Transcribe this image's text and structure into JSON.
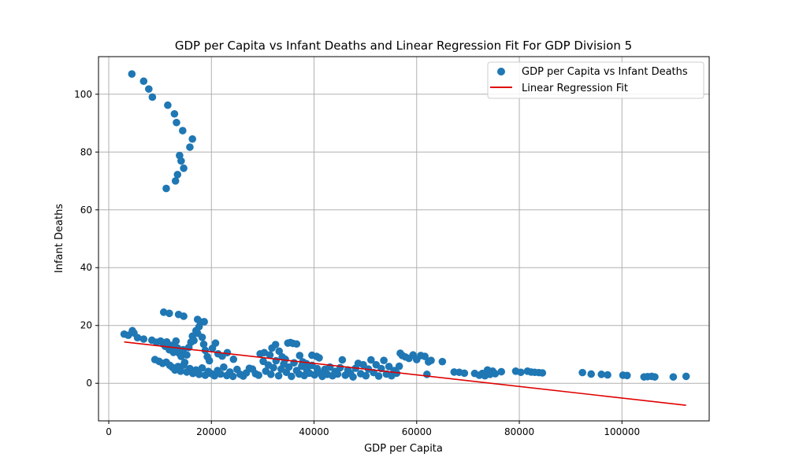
{
  "chart_data": {
    "type": "scatter",
    "title": "GDP per Capita vs Infant Deaths and Linear Regression Fit For GDP Division 5",
    "xlabel": "GDP per Capita",
    "ylabel": "Infant Deaths",
    "xlim": [
      -2000,
      117000
    ],
    "ylim": [
      -13,
      113
    ],
    "xticks": [
      0,
      20000,
      40000,
      60000,
      80000,
      100000
    ],
    "yticks": [
      0,
      20,
      40,
      60,
      80,
      100
    ],
    "grid": true,
    "legend_position": "top-right",
    "colors": {
      "scatter": "#1f77b4",
      "fit": "#e00000",
      "grid": "#b0b0b0"
    },
    "series": [
      {
        "name": "GDP per Capita vs Infant Deaths",
        "kind": "scatter",
        "points": [
          [
            4500,
            107
          ],
          [
            6800,
            104.5
          ],
          [
            7800,
            101.8
          ],
          [
            8500,
            99
          ],
          [
            11500,
            96.2
          ],
          [
            12800,
            93.2
          ],
          [
            13200,
            90.2
          ],
          [
            14400,
            87.4
          ],
          [
            16300,
            84.5
          ],
          [
            15800,
            81.7
          ],
          [
            13800,
            78.8
          ],
          [
            14100,
            76.9
          ],
          [
            14600,
            74.4
          ],
          [
            13400,
            72.2
          ],
          [
            13000,
            70
          ],
          [
            11200,
            67.4
          ],
          [
            3000,
            17
          ],
          [
            3800,
            16.6
          ],
          [
            4600,
            18.2
          ],
          [
            4900,
            17.4
          ],
          [
            5600,
            15.8
          ],
          [
            6800,
            15.3
          ],
          [
            8400,
            14.9
          ],
          [
            9300,
            14.2
          ],
          [
            10100,
            14.6
          ],
          [
            10600,
            13.6
          ],
          [
            11000,
            12.8
          ],
          [
            11300,
            14.3
          ],
          [
            11800,
            11.6
          ],
          [
            12300,
            13.1
          ],
          [
            12600,
            10.7
          ],
          [
            13100,
            14.6
          ],
          [
            13400,
            12.2
          ],
          [
            13700,
            10.4
          ],
          [
            14100,
            9.3
          ],
          [
            14500,
            11.6
          ],
          [
            14800,
            7.2
          ],
          [
            15200,
            9.8
          ],
          [
            15600,
            12.4
          ],
          [
            16000,
            14.2
          ],
          [
            16300,
            16.3
          ],
          [
            16600,
            14.8
          ],
          [
            17000,
            18.2
          ],
          [
            17300,
            17.3
          ],
          [
            17600,
            19.6
          ],
          [
            17900,
            21.2
          ],
          [
            18200,
            15.9
          ],
          [
            18500,
            13.5
          ],
          [
            18800,
            11.4
          ],
          [
            19200,
            9.2
          ],
          [
            19600,
            7.8
          ],
          [
            20200,
            12.1
          ],
          [
            20800,
            13.9
          ],
          [
            21300,
            10.2
          ],
          [
            22100,
            9.4
          ],
          [
            23100,
            10.6
          ],
          [
            24300,
            8.3
          ],
          [
            10700,
            24.6
          ],
          [
            11800,
            24.2
          ],
          [
            13600,
            23.8
          ],
          [
            14600,
            23.2
          ],
          [
            17300,
            22.1
          ],
          [
            18600,
            21.3
          ],
          [
            9000,
            8.2
          ],
          [
            9800,
            7.6
          ],
          [
            10500,
            6.9
          ],
          [
            11200,
            7.3
          ],
          [
            11900,
            6.2
          ],
          [
            12400,
            5.5
          ],
          [
            12900,
            4.6
          ],
          [
            13500,
            5.8
          ],
          [
            14000,
            4.2
          ],
          [
            14600,
            6.3
          ],
          [
            15200,
            3.9
          ],
          [
            15800,
            5.1
          ],
          [
            16400,
            3.4
          ],
          [
            17000,
            4.6
          ],
          [
            17600,
            3.1
          ],
          [
            18200,
            5.3
          ],
          [
            18800,
            2.8
          ],
          [
            19400,
            4.1
          ],
          [
            20000,
            3.3
          ],
          [
            20600,
            2.6
          ],
          [
            21200,
            4.4
          ],
          [
            21800,
            3.2
          ],
          [
            22400,
            5.6
          ],
          [
            23000,
            2.7
          ],
          [
            23600,
            3.9
          ],
          [
            24200,
            2.4
          ],
          [
            25000,
            4.8
          ],
          [
            25600,
            3.1
          ],
          [
            26200,
            2.5
          ],
          [
            26800,
            3.6
          ],
          [
            27400,
            5.2
          ],
          [
            28000,
            4.9
          ],
          [
            28600,
            3.3
          ],
          [
            29200,
            2.8
          ],
          [
            29500,
            10.2
          ],
          [
            30300,
            10.6
          ],
          [
            31400,
            9.8
          ],
          [
            31800,
            12.2
          ],
          [
            32500,
            13.4
          ],
          [
            33200,
            11.1
          ],
          [
            33800,
            9.1
          ],
          [
            34400,
            8.3
          ],
          [
            34900,
            13.9
          ],
          [
            35400,
            14.1
          ],
          [
            35900,
            13.8
          ],
          [
            36600,
            13.6
          ],
          [
            37200,
            9.6
          ],
          [
            37800,
            7.4
          ],
          [
            38500,
            6.8
          ],
          [
            39600,
            9.7
          ],
          [
            40500,
            9.3
          ],
          [
            41000,
            8.8
          ],
          [
            30100,
            7.6
          ],
          [
            30600,
            4.2
          ],
          [
            31100,
            6.3
          ],
          [
            31600,
            3.1
          ],
          [
            32100,
            5.4
          ],
          [
            32600,
            7.8
          ],
          [
            33100,
            2.6
          ],
          [
            33600,
            4.9
          ],
          [
            34100,
            6.7
          ],
          [
            34600,
            3.8
          ],
          [
            35100,
            5.6
          ],
          [
            35600,
            2.4
          ],
          [
            36100,
            7.1
          ],
          [
            36600,
            4.4
          ],
          [
            37100,
            3.2
          ],
          [
            37600,
            5.9
          ],
          [
            38100,
            2.7
          ],
          [
            38600,
            4.6
          ],
          [
            39100,
            3.5
          ],
          [
            39600,
            6.2
          ],
          [
            40100,
            2.9
          ],
          [
            40600,
            5.1
          ],
          [
            41100,
            3.6
          ],
          [
            41600,
            2.4
          ],
          [
            42100,
            4.8
          ],
          [
            42600,
            3.1
          ],
          [
            43100,
            5.6
          ],
          [
            43600,
            2.6
          ],
          [
            44100,
            4.1
          ],
          [
            44600,
            3.2
          ],
          [
            45100,
            5.4
          ],
          [
            45500,
            8.1
          ],
          [
            46100,
            2.8
          ],
          [
            46600,
            4.6
          ],
          [
            47100,
            3.4
          ],
          [
            47600,
            2.2
          ],
          [
            48100,
            5.2
          ],
          [
            48600,
            6.9
          ],
          [
            49100,
            3.3
          ],
          [
            49600,
            6.4
          ],
          [
            50100,
            2.6
          ],
          [
            50600,
            4.9
          ],
          [
            51100,
            8.1
          ],
          [
            51600,
            3.7
          ],
          [
            52100,
            6.4
          ],
          [
            52600,
            2.5
          ],
          [
            53100,
            5.1
          ],
          [
            53600,
            7.9
          ],
          [
            54100,
            3.2
          ],
          [
            54600,
            5.8
          ],
          [
            55100,
            2.6
          ],
          [
            55600,
            4.4
          ],
          [
            56100,
            3.5
          ],
          [
            56600,
            5.9
          ],
          [
            56800,
            10.4
          ],
          [
            57200,
            9.6
          ],
          [
            57800,
            9.1
          ],
          [
            58500,
            8.6
          ],
          [
            59300,
            9.8
          ],
          [
            60000,
            8.2
          ],
          [
            60800,
            9.6
          ],
          [
            61600,
            9.3
          ],
          [
            62300,
            7.4
          ],
          [
            62800,
            7.9
          ],
          [
            65000,
            7.5
          ],
          [
            62000,
            3.1
          ],
          [
            67300,
            3.9
          ],
          [
            68300,
            3.8
          ],
          [
            69300,
            3.5
          ],
          [
            71300,
            3.4
          ],
          [
            72200,
            2.8
          ],
          [
            72800,
            3.4
          ],
          [
            73300,
            2.6
          ],
          [
            73800,
            4.6
          ],
          [
            74300,
            3.1
          ],
          [
            74800,
            4.2
          ],
          [
            75300,
            3.3
          ],
          [
            76500,
            4
          ],
          [
            79300,
            4.2
          ],
          [
            80300,
            3.8
          ],
          [
            81600,
            4.2
          ],
          [
            82300,
            3.9
          ],
          [
            83000,
            3.8
          ],
          [
            83800,
            3.7
          ],
          [
            84500,
            3.6
          ],
          [
            92300,
            3.7
          ],
          [
            94000,
            3.2
          ],
          [
            96000,
            3.1
          ],
          [
            97200,
            2.9
          ],
          [
            100200,
            2.8
          ],
          [
            101000,
            2.7
          ],
          [
            104300,
            2.2
          ],
          [
            105000,
            2.3
          ],
          [
            105800,
            2.4
          ],
          [
            106400,
            2.2
          ],
          [
            110000,
            2.2
          ],
          [
            112500,
            2.4
          ]
        ]
      },
      {
        "name": "Linear Regression Fit",
        "kind": "line",
        "points": [
          [
            3000,
            14.3
          ],
          [
            112500,
            -7.6
          ]
        ]
      }
    ]
  }
}
